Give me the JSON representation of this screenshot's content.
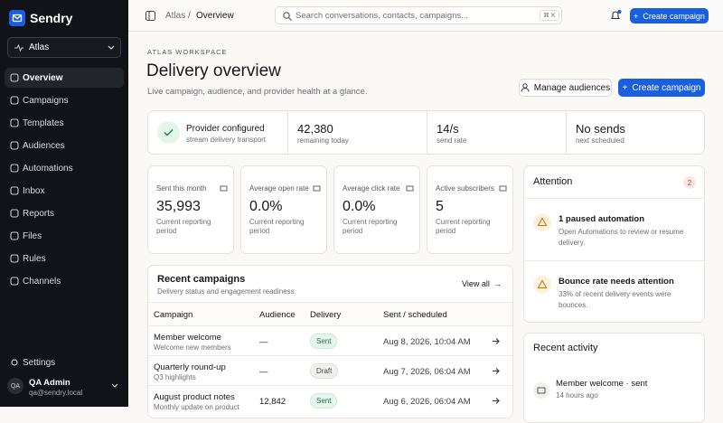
{
  "sidebar": {
    "brand": "Sendry",
    "workspace": "Atlas",
    "nav": [
      "Overview",
      "Campaigns",
      "Templates",
      "Audiences",
      "Automations",
      "Inbox",
      "Reports",
      "Files",
      "Rules",
      "Channels"
    ],
    "settings": "Settings",
    "user": {
      "initials": "QA",
      "name": "QA Admin",
      "email": "qa@sendry.local"
    }
  },
  "topbar": {
    "breadcrumb": [
      "Atlas",
      "/",
      "Overview"
    ],
    "search_placeholder": "Search conversations, contacts, campaigns...",
    "shortcut": "⌘ K",
    "create": "Create campaign"
  },
  "header": {
    "eyebrow": "ATLAS WORKSPACE",
    "title": "Delivery overview",
    "subtitle": "Live campaign, audience, and provider health at a glance.",
    "manage": "Manage audiences",
    "create": "Create campaign"
  },
  "status": [
    {
      "value": "Provider configured",
      "label": "stream delivery transport"
    },
    {
      "value": "42,380",
      "label": "remaining today"
    },
    {
      "value": "14/s",
      "label": "send rate"
    },
    {
      "value": "No sends",
      "label": "next scheduled"
    }
  ],
  "metrics": [
    {
      "label": "Sent this month",
      "value": "35,993",
      "note": "Current reporting period"
    },
    {
      "label": "Average open rate",
      "value": "0.0%",
      "note": "Current reporting period"
    },
    {
      "label": "Average click rate",
      "value": "0.0%",
      "note": "Current reporting period"
    },
    {
      "label": "Active subscribers",
      "value": "5",
      "note": "Current reporting period"
    }
  ],
  "campaigns": {
    "title": "Recent campaigns",
    "subtitle": "Delivery status and engagement readiness",
    "view_all": "View all",
    "columns": [
      "Campaign",
      "Audience",
      "Delivery",
      "Sent / scheduled"
    ],
    "rows": [
      {
        "name": "Member welcome",
        "desc": "Welcome new members",
        "audience": "—",
        "status": "Sent",
        "date": "Aug 8, 2026, 10:04 AM"
      },
      {
        "name": "Quarterly round-up",
        "desc": "Q3 highlights",
        "audience": "—",
        "status": "Draft",
        "date": "Aug 7, 2026, 06:04 AM"
      },
      {
        "name": "August product notes",
        "desc": "Monthly update on product",
        "audience": "12,842",
        "status": "Sent",
        "date": "Aug 6, 2026, 06:04 AM"
      }
    ]
  },
  "attention": {
    "title": "Attention",
    "count": "2",
    "items": [
      {
        "title": "1 paused automation",
        "text": "Open Automations to review or resume delivery."
      },
      {
        "title": "Bounce rate needs attention",
        "text": "33% of recent delivery events were bounces."
      }
    ]
  },
  "activity": {
    "title": "Recent activity",
    "items": [
      {
        "title": "Member welcome · sent",
        "time": "14 hours ago"
      }
    ]
  }
}
